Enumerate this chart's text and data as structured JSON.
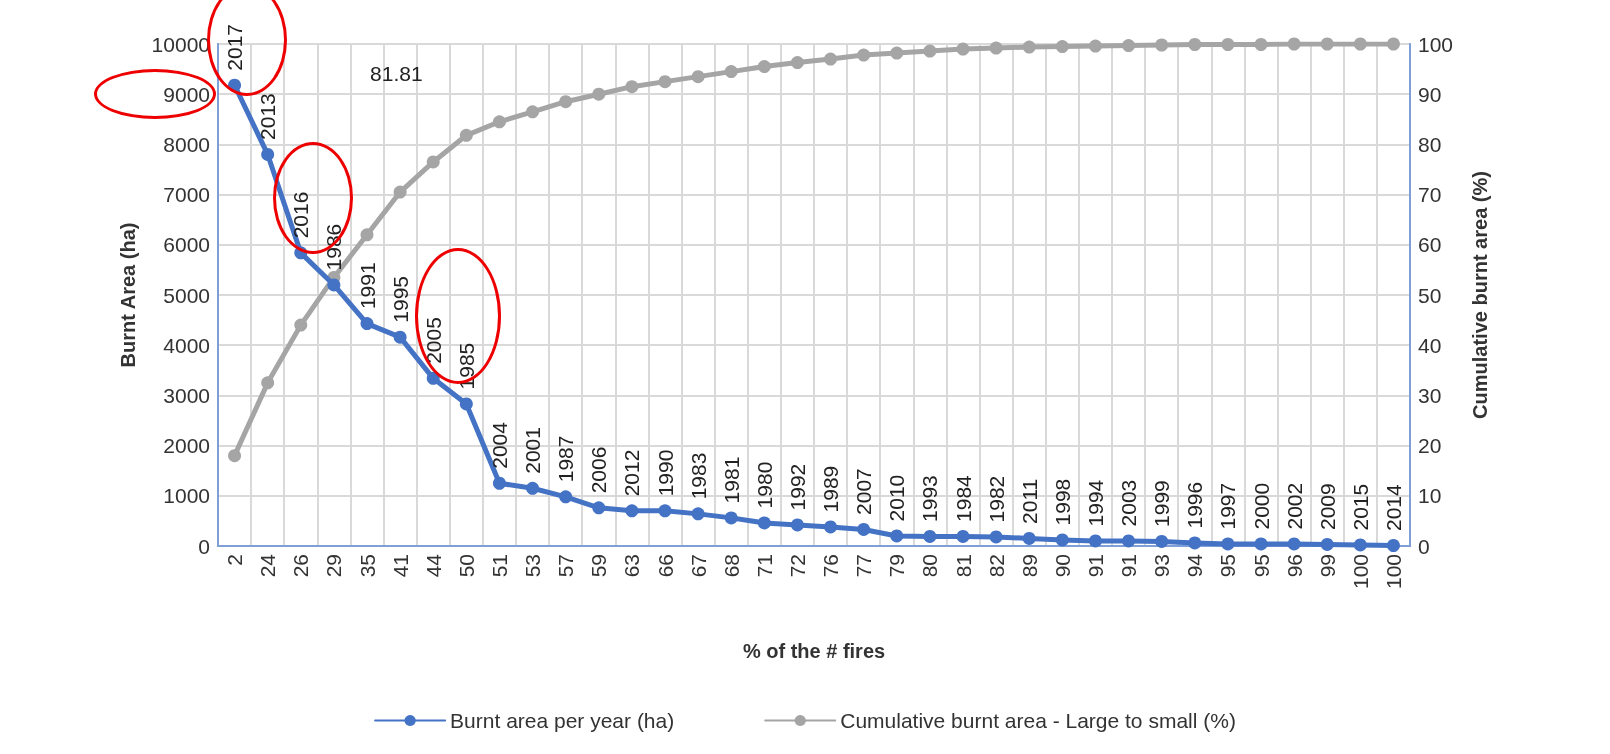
{
  "chart_data": {
    "type": "line",
    "categories": [
      "2",
      "24",
      "26",
      "29",
      "35",
      "41",
      "44",
      "50",
      "51",
      "53",
      "57",
      "59",
      "63",
      "66",
      "67",
      "68",
      "71",
      "72",
      "76",
      "77",
      "79",
      "80",
      "81",
      "82",
      "89",
      "90",
      "91",
      "91",
      "93",
      "94",
      "95",
      "95",
      "96",
      "99",
      "100",
      "100"
    ],
    "series": [
      {
        "name": "Burnt area per year (ha)",
        "color": "#4472c4",
        "values": [
          9180,
          7800,
          5840,
          5200,
          4430,
          4160,
          3340,
          2830,
          1250,
          1150,
          980,
          760,
          700,
          700,
          640,
          560,
          460,
          420,
          380,
          330,
          200,
          190,
          190,
          180,
          150,
          120,
          100,
          100,
          90,
          60,
          40,
          40,
          40,
          30,
          20,
          10
        ]
      },
      {
        "name": "Cumulative burnt area - Large to small (%)",
        "color": "#a5a5a5",
        "axis": "y2",
        "values": [
          18,
          32.5,
          44,
          53.5,
          62,
          70.5,
          76.5,
          81.81,
          84.5,
          86.5,
          88.5,
          90,
          91.5,
          92.5,
          93.5,
          94.5,
          95.5,
          96.3,
          97,
          97.8,
          98.2,
          98.6,
          99,
          99.2,
          99.4,
          99.5,
          99.6,
          99.7,
          99.8,
          99.9,
          99.9,
          99.9,
          100,
          100,
          100,
          100
        ],
        "value_labels": [
          null,
          null,
          null,
          null,
          null,
          null,
          null,
          "81.81",
          null,
          null,
          null,
          null,
          null,
          null,
          null,
          null,
          null,
          null,
          null,
          null,
          null,
          null,
          null,
          null,
          null,
          null,
          null,
          null,
          null,
          null,
          null,
          null,
          null,
          null,
          null,
          null
        ]
      }
    ],
    "xlabel": "% of the # fires",
    "ylabel": "Burnt Area (ha)",
    "y2label": "Cumulative burnt area (%)",
    "ylim": [
      0,
      10000
    ],
    "yticks": [
      0,
      1000,
      2000,
      3000,
      4000,
      5000,
      6000,
      7000,
      8000,
      9000,
      10000
    ],
    "y2lim": [
      0,
      100
    ],
    "y2ticks": [
      0,
      10,
      20,
      30,
      40,
      50,
      60,
      70,
      80,
      90,
      100
    ],
    "annotations": [
      {
        "text": "2017",
        "x": "2",
        "y": 9180
      },
      {
        "text": "2013",
        "x": "24",
        "y": 7800
      },
      {
        "text": "2016",
        "x": "26",
        "y": 5840
      },
      {
        "text": "1986",
        "x": "29",
        "y": 5200
      },
      {
        "text": "1991",
        "x": "35",
        "y": 4430
      },
      {
        "text": "1995",
        "x": "41",
        "y": 4160
      },
      {
        "text": "2005",
        "x": "44",
        "y": 3340
      },
      {
        "text": "1985",
        "x": "50",
        "y": 2830
      },
      {
        "text": "2004",
        "x": "51",
        "y": 1250
      },
      {
        "text": "2001",
        "x": "53",
        "y": 1150
      },
      {
        "text": "1987",
        "x": "57",
        "y": 980
      },
      {
        "text": "2006",
        "x": "59",
        "y": 760
      },
      {
        "text": "2012",
        "x": "63",
        "y": 700
      },
      {
        "text": "1990",
        "x": "66",
        "y": 700
      },
      {
        "text": "1983",
        "x": "67",
        "y": 640
      },
      {
        "text": "1981",
        "x": "68",
        "y": 560
      },
      {
        "text": "1980",
        "x": "71",
        "y": 460
      },
      {
        "text": "1992",
        "x": "72",
        "y": 420
      },
      {
        "text": "1989",
        "x": "76",
        "y": 380
      },
      {
        "text": "2007",
        "x": "77",
        "y": 330
      },
      {
        "text": "2010",
        "x": "79",
        "y": 200
      },
      {
        "text": "1993",
        "x": "80",
        "y": 190
      },
      {
        "text": "1984",
        "x": "81",
        "y": 190
      },
      {
        "text": "1982",
        "x": "82",
        "y": 180
      },
      {
        "text": "2011",
        "x": "89",
        "y": 150
      },
      {
        "text": "1998",
        "x": "90",
        "y": 120
      },
      {
        "text": "1994",
        "x": "91",
        "y": 100
      },
      {
        "text": "2003",
        "x": "91",
        "y": 100
      },
      {
        "text": "1999",
        "x": "93",
        "y": 90
      },
      {
        "text": "1996",
        "x": "94",
        "y": 60
      },
      {
        "text": "1997",
        "x": "95",
        "y": 40
      },
      {
        "text": "2000",
        "x": "95",
        "y": 40
      },
      {
        "text": "2002",
        "x": "96",
        "y": 40
      },
      {
        "text": "2009",
        "x": "99",
        "y": 30
      },
      {
        "text": "2015",
        "x": "100",
        "y": 20
      },
      {
        "text": "2014",
        "x": "100",
        "y": 10
      }
    ],
    "grid": true,
    "legend": "bottom",
    "marker": "circle",
    "line_style": "solid"
  }
}
